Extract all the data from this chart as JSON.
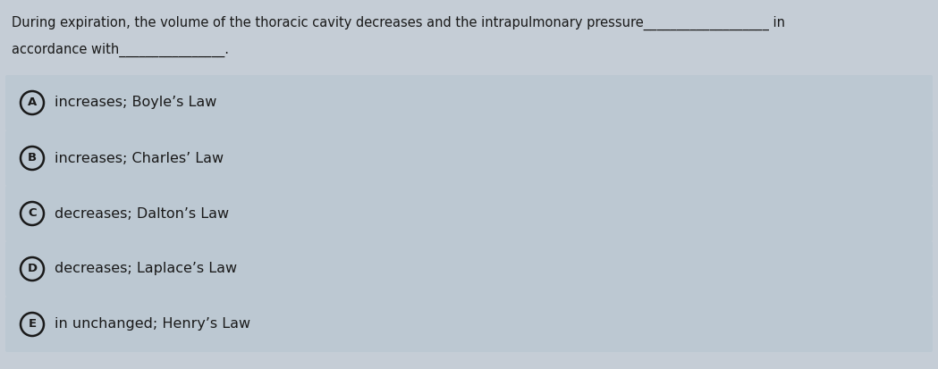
{
  "background_color": "#c5cdd6",
  "question_line1": "During expiration, the volume of the thoracic cavity decreases and the intrapulmonary pressure___________________ in",
  "question_line2": "accordance with________________.",
  "options": [
    {
      "letter": "A",
      "text": "increases; Boyle’s Law"
    },
    {
      "letter": "B",
      "text": "increases; Charles’ Law"
    },
    {
      "letter": "C",
      "text": "decreases; Dalton’s Law"
    },
    {
      "letter": "D",
      "text": "decreases; Laplace’s Law"
    },
    {
      "letter": "E",
      "text": "in unchanged; Henry’s Law"
    }
  ],
  "option_bg_color": "#bcc8d2",
  "text_color": "#1a1a1a",
  "circle_edge_color": "#1a1a1a",
  "question_fontsize": 10.5,
  "option_fontsize": 11.5,
  "letter_fontsize": 9.5
}
